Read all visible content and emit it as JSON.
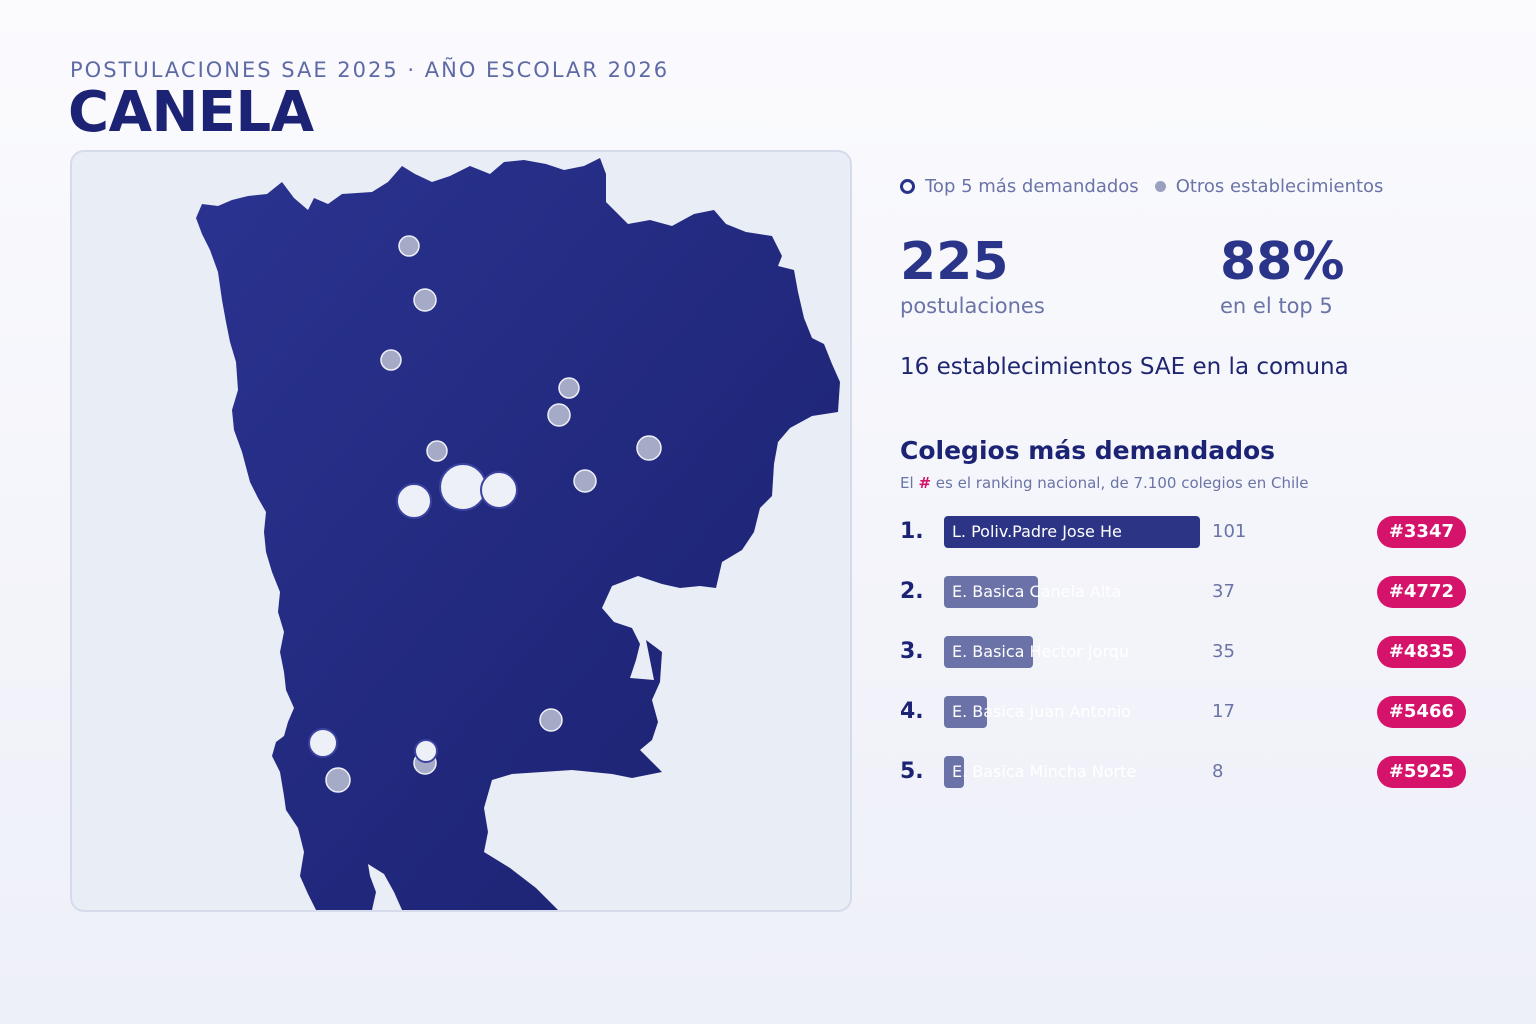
{
  "header": {
    "subtitle": "POSTULACIONES SAE 2025 · AÑO ESCOLAR 2026",
    "title": "CANELA"
  },
  "legend": {
    "top5_label": "Top 5 más demandados",
    "others_label": "Otros establecimientos"
  },
  "stats": {
    "applications_value": "225",
    "applications_label": "postulaciones",
    "top5_share_value": "88%",
    "top5_share_label": "en el top 5"
  },
  "schools_count_text": "16 establecimientos SAE en la comuna",
  "ranking": {
    "title": "Colegios más demandados",
    "note_prefix": "El",
    "note_hash": "#",
    "note_suffix": "es el ranking nacional, de 7.100 colegios en Chile",
    "items": [
      {
        "rank": "1.",
        "name": "L. Poliv.Padre Jose He",
        "applications": 101,
        "national_rank": "#3347"
      },
      {
        "rank": "2.",
        "name": "E. Basica Canela Alta",
        "applications": 37,
        "national_rank": "#4772"
      },
      {
        "rank": "3.",
        "name": "E. Basica Hector Jorqu",
        "applications": 35,
        "national_rank": "#4835"
      },
      {
        "rank": "4.",
        "name": "E. Basica Juan Antonio",
        "applications": 17,
        "national_rank": "#5466"
      },
      {
        "rank": "5.",
        "name": "E. Basica Mincha Norte",
        "applications": 8,
        "national_rank": "#5925"
      }
    ]
  },
  "colors": {
    "region_fill": "#222a80",
    "top_bar": "#2c3486",
    "other_bar": "#6a72a8",
    "badge": "#d6136b",
    "marker_top": "#eef0f8",
    "marker_other": "#a5aac6"
  },
  "icons": {
    "top5_marker": "ring-icon",
    "other_marker": "dot-icon"
  }
}
